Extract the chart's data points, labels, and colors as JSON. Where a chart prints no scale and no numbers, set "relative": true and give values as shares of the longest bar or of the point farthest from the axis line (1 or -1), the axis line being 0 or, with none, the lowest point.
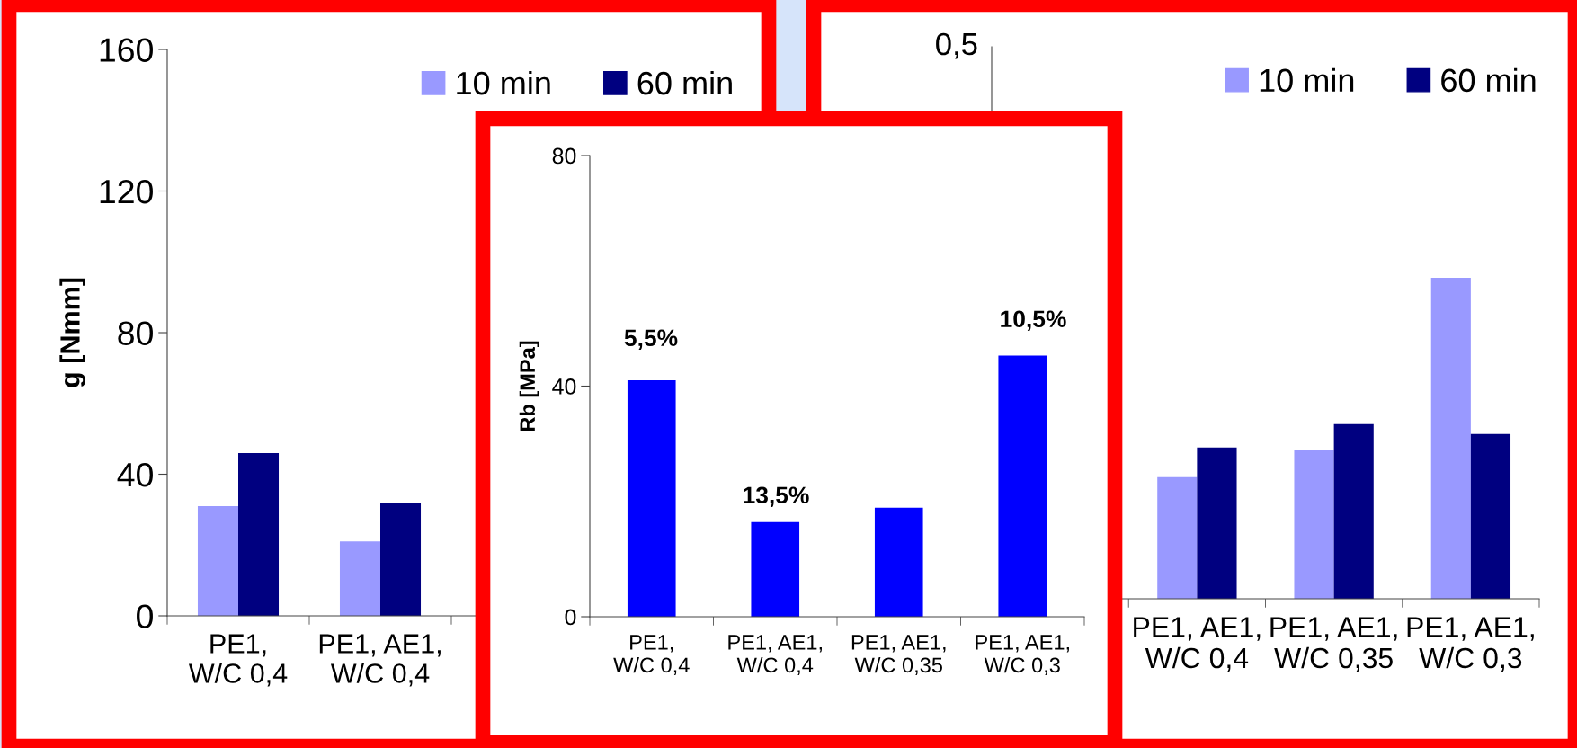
{
  "chart_data": [
    {
      "type": "bar",
      "ylabel": "g [Nmm]",
      "categories": [
        "PE1,\nW/C 0,4",
        "PE1, AE1,\nW/C 0,4",
        null,
        null
      ],
      "ylim": [
        0,
        160
      ],
      "yticks": [
        0,
        40,
        80,
        120,
        160
      ],
      "grid": false,
      "legend": "top right",
      "series": [
        {
          "name": "10 min",
          "color": "#9999ff",
          "values": [
            31,
            21,
            null,
            null
          ]
        },
        {
          "name": "60 min",
          "color": "#000080",
          "values": [
            46,
            32,
            null,
            null
          ]
        }
      ]
    },
    {
      "type": "bar",
      "ylabel": "Rb [MPa]",
      "categories": [
        "PE1,\nW/C 0,4",
        "PE1, AE1,\nW/C 0,4",
        "PE1, AE1,\nW/C 0,35",
        "PE1, AE1,\nW/C 0,3"
      ],
      "ylim": [
        0,
        80
      ],
      "yticks": [
        0,
        40,
        80
      ],
      "grid": false,
      "legend": false,
      "series": [
        {
          "color": "#0000ff",
          "values": [
            41,
            16.4,
            18.9,
            45.3
          ]
        }
      ],
      "annotations": [
        "5,5%",
        "13,5%",
        "10,5%"
      ]
    },
    {
      "type": "bar",
      "relative": true,
      "categories": [
        null,
        "PE1, AE1,\nW/C 0,4",
        "PE1, AE1,\nW/C 0,35",
        "PE1, AE1,\nW/C 0,3"
      ],
      "grid": false,
      "legend": "top right",
      "series": [
        {
          "name": "10 min",
          "color": "#9999ff",
          "values": [
            null,
            0.379,
            0.462,
            1
          ]
        },
        {
          "name": "60 min",
          "color": "#000080",
          "values": [
            null,
            0.471,
            0.544,
            0.513
          ]
        }
      ],
      "annotations": [
        "0,5"
      ]
    }
  ]
}
